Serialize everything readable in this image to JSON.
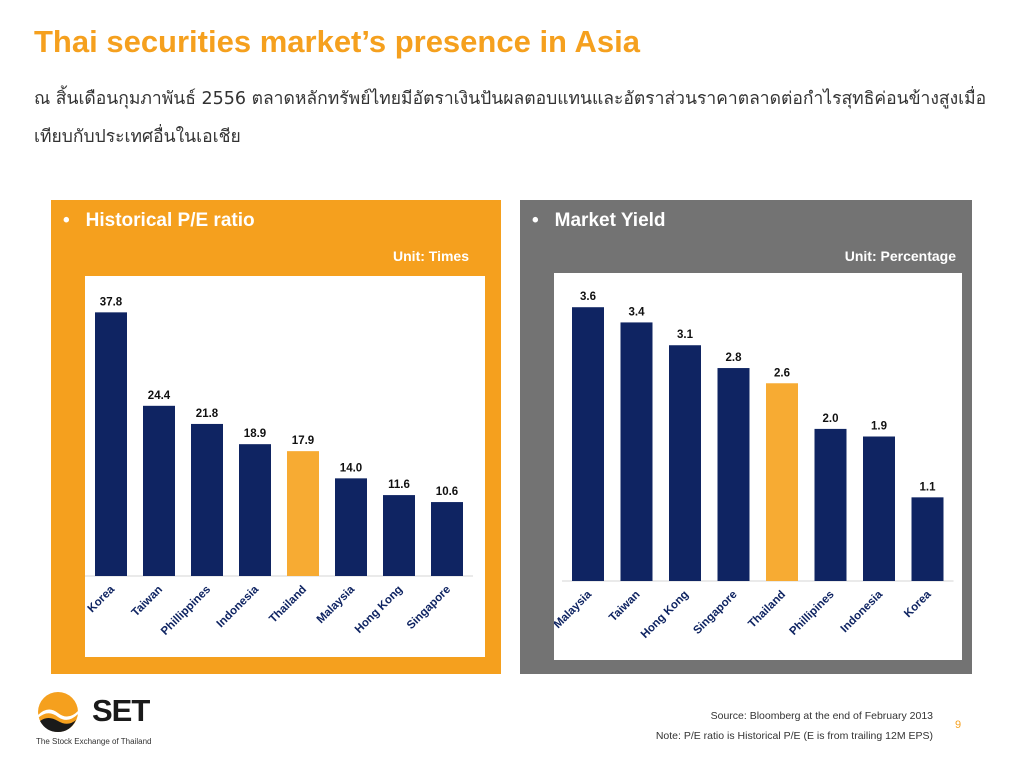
{
  "slide": {
    "title": "Thai securities market’s presence in Asia",
    "subtitle": "ณ สิ้นเดือนกุมภาพันธ์ 2556 ตลาดหลักทรัพย์ไทยมีอัตราเงินปันผลตอบแทนและอัตราส่วนราคาตลาดต่อกำไรสุทธิค่อนข้างสูงเมื่อเทียบกับประเทศอื่นในเอเชีย",
    "bullet": "•",
    "page_number": "9"
  },
  "footer": {
    "logo_text": "SET",
    "logo_tagline": "The Stock Exchange of Thailand",
    "source": "Source: Bloomberg at the end of February 2013",
    "note": "Note: P/E ratio is Historical P/E (E is from trailing 12M EPS)"
  },
  "colors": {
    "accent_orange": "#f5a01e",
    "panel_gray": "#737373",
    "bar_navy": "#0f2462",
    "bar_highlight": "#f7ab33"
  },
  "chart_data": [
    {
      "type": "bar",
      "title": "Historical P/E ratio",
      "unit": "Unit: Times",
      "categories": [
        "Korea",
        "Taiwan",
        "Phillippines",
        "Indonesia",
        "Thailand",
        "Malaysia",
        "Hong Kong",
        "Singapore"
      ],
      "values": [
        37.8,
        24.4,
        21.8,
        18.9,
        17.9,
        14.0,
        11.6,
        10.6
      ],
      "labels": [
        "37.8",
        "24.4",
        "21.8",
        "18.9",
        "17.9",
        "14.0",
        "11.6",
        "10.6"
      ],
      "highlight": "Thailand",
      "ylim": [
        0,
        40
      ],
      "grid": false,
      "legend": "none"
    },
    {
      "type": "bar",
      "title": "Market Yield",
      "unit": "Unit: Percentage",
      "categories": [
        "Malaysia",
        "Taiwan",
        "Hong Kong",
        "Singapore",
        "Thailand",
        "Phillipines",
        "Indonesia",
        "Korea"
      ],
      "values": [
        3.6,
        3.4,
        3.1,
        2.8,
        2.6,
        2.0,
        1.9,
        1.1
      ],
      "labels": [
        "3.6",
        "3.4",
        "3.1",
        "2.8",
        "2.6",
        "2.0",
        "1.9",
        "1.1"
      ],
      "highlight": "Thailand",
      "ylim": [
        0,
        3.8
      ],
      "grid": false,
      "legend": "none"
    }
  ]
}
